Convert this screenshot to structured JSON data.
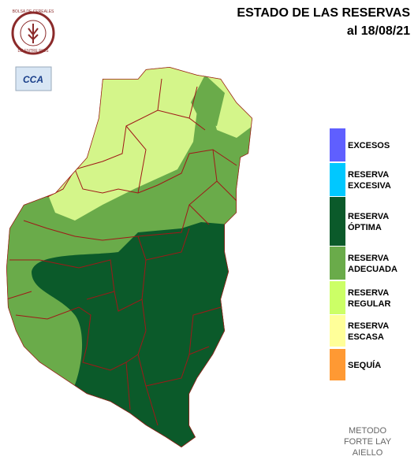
{
  "header": {
    "title": "ESTADO DE LAS RESERVAS",
    "date": "al 18/08/21"
  },
  "logos": {
    "bolsa": [
      "BOLSA DE CEREALES",
      "DE ENTRE RIOS"
    ],
    "cca": "CCA"
  },
  "legend": {
    "items": [
      {
        "lines": [
          "EXCESOS"
        ],
        "color": "#5f5fff"
      },
      {
        "lines": [
          "RESERVA",
          "EXCESIVA"
        ],
        "color": "#00c8ff"
      },
      {
        "lines": [
          "RESERVA",
          "ÓPTIMA"
        ],
        "color": "#0b5a2a"
      },
      {
        "lines": [
          "RESERVA",
          "ADECUADA"
        ],
        "color": "#6aab4a"
      },
      {
        "lines": [
          "RESERVA",
          "REGULAR"
        ],
        "color": "#ccff66"
      },
      {
        "lines": [
          "RESERVA",
          "ESCASA"
        ],
        "color": "#ffff99"
      },
      {
        "lines": [
          "SEQUÍA"
        ],
        "color": "#ff9933"
      }
    ]
  },
  "footer": {
    "lines": [
      "METODO",
      "FORTE LAY",
      "AIELLO"
    ]
  }
}
